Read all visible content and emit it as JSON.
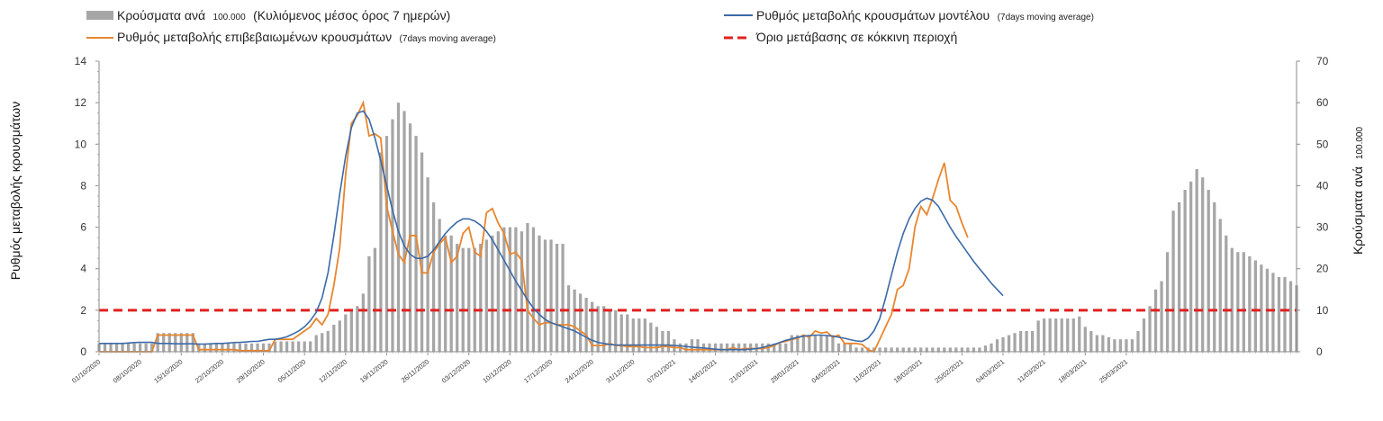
{
  "chart_data": {
    "type": "bar+line",
    "legend": {
      "bars_main": "Κρούσματα ανά",
      "bars_small": "100.000",
      "bars_tail": "(Κυλιόμενος μέσος όρος 7 ημερών)",
      "model_main": "Ρυθμός μεταβολής κρουσμάτων μοντέλου",
      "model_small": "(7days moving average)",
      "confirmed_main": "Ρυθμός μεταβολής επιβεβαιωμένων κρουσμάτων",
      "confirmed_small": "(7days moving average)",
      "threshold": "Όριο μετάβασης σε κόκκινη περιοχή"
    },
    "ylabel_left": "Ρυθμός μεταβολής κρουσμάτων",
    "ylabel_right_main": "Κρούσματα ανά",
    "ylabel_right_small": "100.000",
    "y_left": {
      "min": 0,
      "max": 14,
      "ticks": [
        0,
        2,
        4,
        6,
        8,
        10,
        12,
        14
      ]
    },
    "y_right": {
      "min": 0,
      "max": 70,
      "ticks": [
        0,
        10,
        20,
        30,
        40,
        50,
        60,
        70
      ]
    },
    "x_labels": [
      "01/10/2020",
      "08/10/2020",
      "15/10/2020",
      "22/10/2020",
      "29/10/2020",
      "05/11/2020",
      "12/11/2020",
      "19/11/2020",
      "26/11/2020",
      "03/12/2020",
      "10/12/2020",
      "17/12/2020",
      "24/12/2020",
      "31/12/2020",
      "07/01/2021",
      "14/01/2021",
      "21/01/2021",
      "28/01/2021",
      "04/02/2021",
      "11/02/2021",
      "18/02/2021",
      "25/02/2021",
      "04/03/2021",
      "11/03/2021",
      "18/03/2021",
      "25/03/2021"
    ],
    "threshold_value": 2,
    "colors": {
      "bars": "#a6a6a6",
      "model": "#3b6aa8",
      "confirmed": "#e8862f",
      "threshold": "#e0211f"
    },
    "bars_per100k": [
      2,
      2,
      2,
      2,
      2,
      2,
      2,
      2,
      2,
      2,
      4.5,
      4.5,
      4.5,
      4.5,
      4.5,
      4.5,
      4.5,
      2,
      2,
      2,
      2,
      2,
      2,
      2,
      2,
      2,
      2,
      2,
      2,
      2,
      2.5,
      2.5,
      2.5,
      2.5,
      2.5,
      2.5,
      2.5,
      4,
      4.5,
      5,
      6.5,
      7.5,
      9,
      10,
      11,
      14,
      23,
      25,
      48,
      52,
      56,
      60,
      58,
      55,
      52,
      48,
      42,
      36,
      32,
      28,
      28,
      26,
      25,
      25,
      25,
      26,
      27,
      28,
      29,
      30,
      30,
      30,
      29,
      31,
      30,
      28,
      27,
      27,
      26,
      26,
      16,
      15,
      14,
      13,
      12,
      11,
      11,
      10,
      10,
      9,
      9,
      8,
      8,
      8,
      7,
      6,
      5,
      5,
      3,
      2,
      2,
      3,
      3,
      2,
      2,
      2,
      2,
      2,
      2,
      2,
      2,
      2,
      2,
      2,
      2,
      2,
      2,
      2,
      4,
      4,
      4,
      4,
      4,
      4,
      4,
      4,
      2,
      2,
      2,
      1,
      1,
      1,
      1,
      1,
      1,
      1,
      1,
      1,
      1,
      1,
      1,
      1,
      1,
      1,
      1,
      1,
      1,
      1,
      1,
      1,
      1,
      1.5,
      2,
      3,
      3.5,
      4,
      4.5,
      5,
      5,
      5,
      7.5,
      8,
      8,
      8,
      8,
      8,
      8,
      8.5,
      6,
      5,
      4,
      4,
      3.5,
      3,
      3,
      3,
      3,
      5,
      8,
      11,
      15,
      17,
      24,
      34,
      36,
      39,
      41,
      44,
      42,
      39,
      36,
      32,
      28,
      25,
      24,
      24,
      23,
      22,
      21,
      20,
      19,
      18,
      18,
      17,
      16
    ],
    "model_rate": [
      0.4,
      0.4,
      0.4,
      0.4,
      0.4,
      0.42,
      0.44,
      0.45,
      0.45,
      0.45,
      0.4,
      0.4,
      0.4,
      0.38,
      0.38,
      0.38,
      0.38,
      0.37,
      0.37,
      0.38,
      0.4,
      0.4,
      0.42,
      0.44,
      0.45,
      0.47,
      0.5,
      0.5,
      0.55,
      0.6,
      0.6,
      0.65,
      0.72,
      0.85,
      1.0,
      1.2,
      1.5,
      1.9,
      2.6,
      3.8,
      5.6,
      7.6,
      9.4,
      10.8,
      11.5,
      11.6,
      11.2,
      10.3,
      9.2,
      8.0,
      6.8,
      5.8,
      5.1,
      4.7,
      4.5,
      4.5,
      4.6,
      4.9,
      5.3,
      5.7,
      6.0,
      6.25,
      6.4,
      6.4,
      6.3,
      6.1,
      5.8,
      5.4,
      4.9,
      4.4,
      3.9,
      3.4,
      2.95,
      2.5,
      2.1,
      1.8,
      1.55,
      1.4,
      1.3,
      1.2,
      1.1,
      1.0,
      0.85,
      0.7,
      0.55,
      0.45,
      0.4,
      0.35,
      0.33,
      0.32,
      0.32,
      0.32,
      0.32,
      0.32,
      0.32,
      0.32,
      0.32,
      0.32,
      0.3,
      0.28,
      0.25,
      0.22,
      0.2,
      0.18,
      0.15,
      0.12,
      0.1,
      0.1,
      0.1,
      0.1,
      0.1,
      0.12,
      0.15,
      0.2,
      0.28,
      0.35,
      0.45,
      0.55,
      0.62,
      0.7,
      0.75,
      0.78,
      0.8,
      0.8,
      0.78,
      0.75,
      0.7,
      0.65,
      0.58,
      0.52,
      0.5,
      0.65,
      1.0,
      1.6,
      2.6,
      3.7,
      4.8,
      5.7,
      6.4,
      6.9,
      7.25,
      7.4,
      7.3,
      7.0,
      6.5,
      6.0,
      5.55,
      5.15,
      4.75,
      4.35,
      4.0,
      3.65,
      3.3,
      3.0,
      2.7
    ],
    "confirmed_rate": [
      0,
      0,
      0,
      0,
      0,
      0,
      0,
      0,
      0,
      0,
      0.8,
      0.8,
      0.8,
      0.8,
      0.8,
      0.8,
      0.8,
      0.1,
      0.1,
      0.1,
      0.1,
      0.1,
      0.1,
      0.1,
      0.05,
      0.05,
      0.05,
      0.05,
      0.05,
      0.05,
      0.6,
      0.6,
      0.6,
      0.6,
      0.8,
      1.0,
      1.2,
      1.6,
      1.3,
      1.8,
      3.2,
      5.0,
      8.5,
      11.0,
      11.4,
      12.0,
      10.4,
      10.5,
      10.3,
      7.0,
      5.8,
      4.7,
      4.3,
      5.6,
      5.6,
      3.8,
      3.8,
      4.8,
      5.2,
      5.5,
      4.3,
      4.6,
      5.7,
      6.0,
      4.8,
      4.6,
      6.7,
      6.9,
      6.2,
      5.7,
      4.7,
      4.8,
      4.4,
      2.0,
      1.6,
      1.3,
      1.4,
      1.4,
      1.3,
      1.3,
      1.3,
      1.2,
      1.0,
      0.8,
      0.3,
      0.3,
      0.3,
      0.4,
      0.3,
      0.3,
      0.25,
      0.25,
      0.25,
      0.2,
      0.2,
      0.2,
      0.25,
      0.25,
      0.2,
      0.2,
      0.1,
      0.1,
      0.1,
      0.1,
      0.1,
      0.1,
      0.1,
      0.1,
      0.2,
      0.1,
      0.15,
      0.15,
      0.15,
      0.15,
      0.2,
      0.3,
      0.45,
      0.5,
      0.6,
      0.65,
      0.8,
      0.7,
      1.0,
      0.9,
      0.95,
      0.7,
      0.8,
      0.4,
      0.4,
      0.4,
      0.35,
      0.1,
      0.0,
      0.6,
      1.2,
      1.8,
      3.0,
      3.2,
      4.0,
      6.0,
      7.0,
      6.6,
      7.4,
      8.3,
      9.1,
      7.3,
      7.0,
      6.2,
      5.5
    ]
  }
}
